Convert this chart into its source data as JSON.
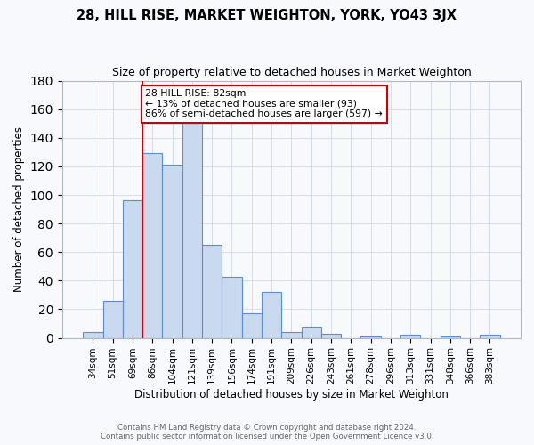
{
  "title": "28, HILL RISE, MARKET WEIGHTON, YORK, YO43 3JX",
  "subtitle": "Size of property relative to detached houses in Market Weighton",
  "xlabel": "Distribution of detached houses by size in Market Weighton",
  "ylabel": "Number of detached properties",
  "bar_labels": [
    "34sqm",
    "51sqm",
    "69sqm",
    "86sqm",
    "104sqm",
    "121sqm",
    "139sqm",
    "156sqm",
    "174sqm",
    "191sqm",
    "209sqm",
    "226sqm",
    "243sqm",
    "261sqm",
    "278sqm",
    "296sqm",
    "313sqm",
    "331sqm",
    "348sqm",
    "366sqm",
    "383sqm"
  ],
  "bar_values": [
    4,
    26,
    96,
    129,
    121,
    151,
    65,
    43,
    17,
    32,
    4,
    8,
    3,
    0,
    1,
    0,
    2,
    0,
    1,
    0,
    2
  ],
  "bar_color": "#c9d9f0",
  "bar_edge_color": "#5b8ed6",
  "vline_color": "#cc0000",
  "ylim": [
    0,
    180
  ],
  "yticks": [
    0,
    20,
    40,
    60,
    80,
    100,
    120,
    140,
    160,
    180
  ],
  "annotation_text_line1": "28 HILL RISE: 82sqm",
  "annotation_text_line2": "← 13% of detached houses are smaller (93)",
  "annotation_text_line3": "86% of semi-detached houses are larger (597) →",
  "footer_line1": "Contains HM Land Registry data © Crown copyright and database right 2024.",
  "footer_line2": "Contains public sector information licensed under the Open Government Licence v3.0.",
  "figure_bg": "#f7f9fd",
  "plot_bg": "#f7f9fd",
  "grid_color": "#d0d8e8"
}
